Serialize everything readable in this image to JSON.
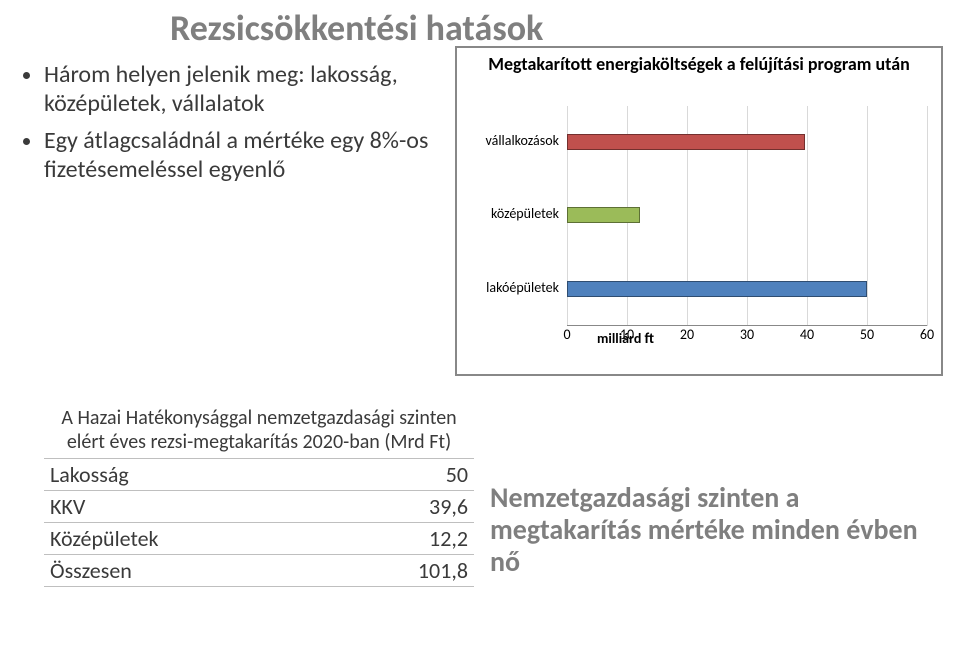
{
  "title": "Rezsicsökkentési hatások",
  "bullets": [
    "Három helyen jelenik meg: lakosság, középületek, vállalatok",
    "Egy átlagcsaládnál a mértéke egy 8%-os fizetésemeléssel egyenlő"
  ],
  "chart": {
    "title": "Megtakarított energiaköltségek a felújítási program után",
    "x_unit": "milliárd",
    "x_unit_suffix": "ft",
    "x_min": 0,
    "x_max": 60,
    "x_tick_step": 10,
    "x_ticks": [
      "0",
      "10",
      "20",
      "30",
      "40",
      "50",
      "60"
    ],
    "grid_color": "#d9d9d9",
    "background_color": "#ffffff",
    "border_color": "#888888",
    "categories": [
      {
        "label": "vállalkozások",
        "value": 39.6,
        "color": "#c0504d"
      },
      {
        "label": "középületek",
        "value": 12.2,
        "color": "#9bbb59"
      },
      {
        "label": "lakóépületek",
        "value": 50,
        "color": "#4f81bd"
      }
    ]
  },
  "table": {
    "title": "A Hazai Hatékonysággal nemzetgazdasági szinten elért éves rezsi-megtakarítás 2020-ban (Mrd Ft)",
    "rows": [
      {
        "label": "Lakosság",
        "value": "50"
      },
      {
        "label": "KKV",
        "value": "39,6"
      },
      {
        "label": "Középületek",
        "value": "12,2"
      },
      {
        "label": "Összesen",
        "value": "101,8"
      }
    ]
  },
  "summary": "Nemzetgazdasági szinten a megtakarítás mértéke minden évben nő"
}
